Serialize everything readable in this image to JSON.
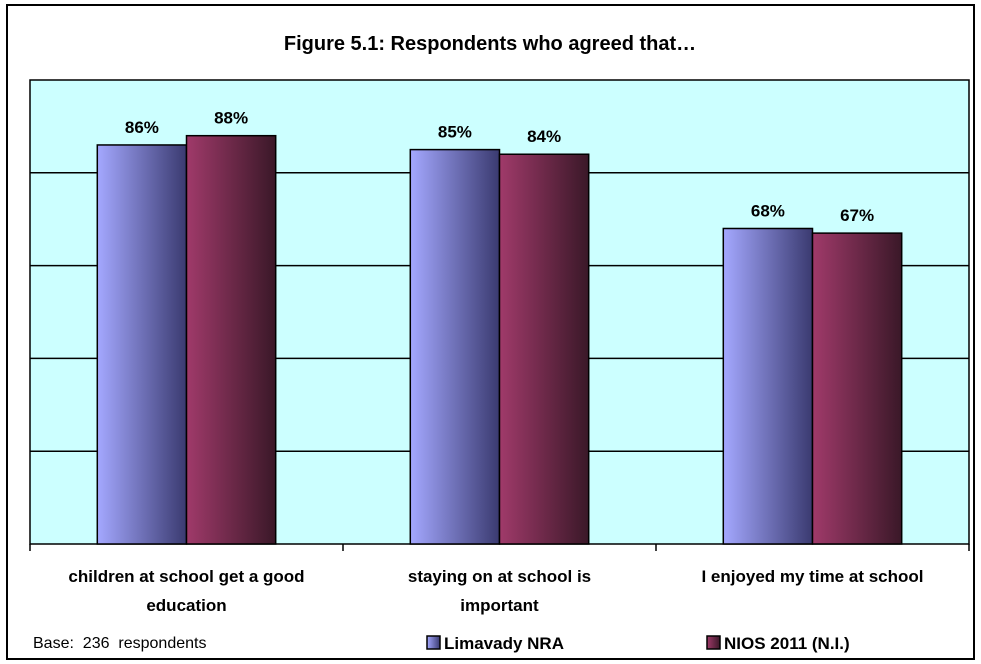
{
  "chart_data": {
    "type": "bar",
    "title": "Figure 5.1: Respondents who agreed that…",
    "categories": [
      [
        "children at school get a good",
        "education"
      ],
      [
        "staying on at school is",
        "important"
      ],
      [
        "I enjoyed my time at school"
      ]
    ],
    "series": [
      {
        "name": "Limavady NRA",
        "values": [
          86,
          85,
          68
        ],
        "labels": [
          "86%",
          "85%",
          "68%"
        ],
        "color_light": "#a4a8ff",
        "color_dark": "#3a3a70"
      },
      {
        "name": "NIOS 2011 (N.I.)",
        "values": [
          88,
          84,
          67
        ],
        "labels": [
          "88%",
          "84%",
          "67%"
        ],
        "color_light": "#a03a6a",
        "color_dark": "#3a1828"
      }
    ],
    "ylim": [
      0,
      100
    ],
    "grid": true,
    "legend_position": "bottom",
    "plot_background": "#ccffff",
    "footnote": "Base:  236  respondents"
  }
}
